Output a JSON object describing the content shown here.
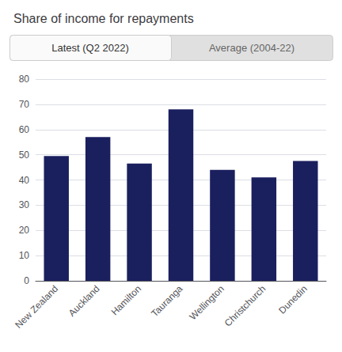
{
  "chart_data": {
    "type": "bar",
    "title": "Share of income for repayments",
    "annotations": [
      "Latest (Q2 2022)",
      "Average (2004-22)"
    ],
    "categories": [
      "New Zealand",
      "Auckland",
      "Hamilton",
      "Tauranga",
      "Wellington",
      "Christchurch",
      "Dunedin"
    ],
    "values": [
      49.5,
      57.0,
      46.5,
      68.0,
      44.0,
      41.0,
      47.5
    ],
    "color": "#1a1f5e",
    "ylim": [
      0,
      80
    ],
    "yticks": [
      0,
      10,
      20,
      30,
      40,
      50,
      60,
      70,
      80
    ],
    "grid": true
  }
}
